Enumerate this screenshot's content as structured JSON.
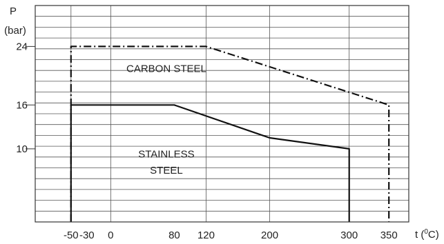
{
  "chart_data": {
    "type": "line",
    "xlabel": "t (°C)",
    "xlabel_prefix": "t (",
    "xlabel_degree": "0",
    "xlabel_suffix": "C)",
    "ylabel_line1": "P",
    "ylabel_line2": "(bar)",
    "xlim": [
      -95,
      375
    ],
    "ylim": [
      0,
      29.6
    ],
    "x_ticks": [
      -50,
      -30,
      0,
      80,
      120,
      200,
      300,
      350
    ],
    "y_ticks": [
      10,
      16,
      24
    ],
    "grid": true,
    "horizontal_grid_count": 19,
    "vertical_grid_x": [
      -50,
      0,
      120,
      200,
      300
    ],
    "series": [
      {
        "name": "CARBON STEEL",
        "line_style": "dash-dot",
        "color": "#111111",
        "points": [
          [
            -50,
            0
          ],
          [
            -50,
            24
          ],
          [
            120,
            24
          ],
          [
            350,
            16
          ],
          [
            350,
            0
          ]
        ]
      },
      {
        "name": "STAINLESS STEEL",
        "line_style": "solid",
        "color": "#111111",
        "points": [
          [
            -50,
            0
          ],
          [
            -50,
            16
          ],
          [
            80,
            16
          ],
          [
            200,
            11.5
          ],
          [
            300,
            10
          ],
          [
            300,
            0
          ]
        ]
      }
    ],
    "annotations": [
      {
        "text": "CARBON STEEL",
        "x": 70,
        "y": 20.5
      },
      {
        "text": "STAINLESS",
        "x": 70,
        "y": 8.8
      },
      {
        "text": "STEEL",
        "x": 70,
        "y": 6.6
      }
    ]
  }
}
